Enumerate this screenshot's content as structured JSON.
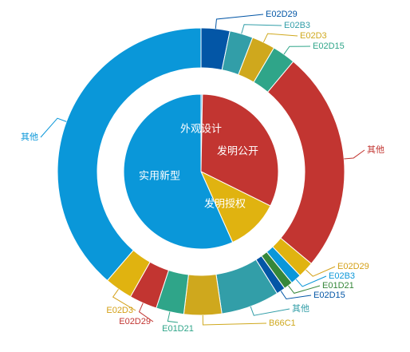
{
  "chart_data": {
    "type": "pie",
    "subtype": "nested-donut",
    "colors": {
      "外观设计": "#3ea3d9",
      "发明公开": "#c23531",
      "发明授权": "#e0b310",
      "实用新型": "#0a97d9",
      "E02D29": "#0356a6",
      "E02B3": "#329ea8",
      "E02D3": "#cfa81d",
      "E02D15": "#2fa589",
      "E01D21": "#36873a",
      "B66C1": "#cfa81d",
      "其他": "#0a97d9"
    },
    "inner": [
      {
        "name": "外观设计",
        "value": 0.3
      },
      {
        "name": "发明公开",
        "value": 32
      },
      {
        "name": "发明授权",
        "value": 11
      },
      {
        "name": "实用新型",
        "value": 56.7
      }
    ],
    "outer": [
      {
        "name": "E02D29",
        "group": "外观设计",
        "value": 3.2,
        "color": "#0356a6",
        "label_color": "#0356a6"
      },
      {
        "name": "E02B3",
        "group": "外观设计",
        "value": 2.6,
        "color": "#329ea8",
        "label_color": "#329ea8"
      },
      {
        "name": "E02D3",
        "group": "外观设计",
        "value": 2.6,
        "color": "#cfa81d",
        "label_color": "#cfa81d"
      },
      {
        "name": "E02D15",
        "group": "外观设计",
        "value": 2.6,
        "color": "#2fa589",
        "label_color": "#2fa589"
      },
      {
        "name": "其他",
        "group": "发明公开",
        "value": 24.7,
        "color": "#c23531",
        "label_color": "#c23531"
      },
      {
        "name": "E02D29",
        "group": "发明授权",
        "value": 1.8,
        "color": "#e0b310",
        "label_color": "#d4a017"
      },
      {
        "name": "E02B3",
        "group": "发明授权",
        "value": 1.2,
        "color": "#0a97d9",
        "label_color": "#0a97d9"
      },
      {
        "name": "E01D21",
        "group": "发明授权",
        "value": 1.0,
        "color": "#36873a",
        "label_color": "#36873a"
      },
      {
        "name": "E02D15",
        "group": "发明授权",
        "value": 1.0,
        "color": "#0356a6",
        "label_color": "#0356a6"
      },
      {
        "name": "其他",
        "group": "发明授权",
        "value": 6.5,
        "color": "#329ea8",
        "label_color": "#329ea8"
      },
      {
        "name": "B66C1",
        "group": "实用新型",
        "value": 4.2,
        "color": "#cfa81d",
        "label_color": "#cfa81d"
      },
      {
        "name": "E01D21",
        "group": "实用新型",
        "value": 3.1,
        "color": "#2fa589",
        "label_color": "#2fa589"
      },
      {
        "name": "E02D29",
        "group": "实用新型",
        "value": 3.1,
        "color": "#c23531",
        "label_color": "#c23531"
      },
      {
        "name": "E02D3",
        "group": "实用新型",
        "value": 3.1,
        "color": "#e0b310",
        "label_color": "#d4a017"
      },
      {
        "name": "其他",
        "group": "实用新型",
        "value": 38.3,
        "color": "#0a97d9",
        "label_color": "#0a97d9"
      }
    ]
  }
}
